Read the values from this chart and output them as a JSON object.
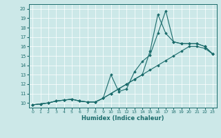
{
  "xlabel": "Humidex (Indice chaleur)",
  "xlim": [
    -0.5,
    23.5
  ],
  "ylim": [
    9.5,
    20.5
  ],
  "xticks": [
    0,
    1,
    2,
    3,
    4,
    5,
    6,
    7,
    8,
    9,
    10,
    11,
    12,
    13,
    14,
    15,
    16,
    17,
    18,
    19,
    20,
    21,
    22,
    23
  ],
  "yticks": [
    10,
    11,
    12,
    13,
    14,
    15,
    16,
    17,
    18,
    19,
    20
  ],
  "bg_color": "#cce8e8",
  "line_color": "#1a6b6b",
  "series": [
    [
      9.8,
      9.9,
      10.0,
      10.2,
      10.3,
      10.4,
      10.2,
      10.1,
      10.1,
      10.5,
      13.0,
      11.2,
      11.5,
      13.3,
      14.4,
      15.1,
      17.4,
      19.8,
      16.5,
      16.3,
      16.3,
      16.3,
      16.0,
      15.2
    ],
    [
      9.8,
      9.9,
      10.0,
      10.2,
      10.3,
      10.4,
      10.2,
      10.1,
      10.1,
      10.5,
      11.0,
      11.5,
      12.0,
      12.5,
      13.0,
      13.5,
      14.0,
      14.5,
      15.0,
      15.5,
      16.0,
      16.0,
      15.8,
      15.2
    ],
    [
      9.8,
      9.9,
      10.0,
      10.2,
      10.3,
      10.4,
      10.2,
      10.1,
      10.1,
      10.5,
      11.0,
      11.5,
      12.0,
      12.5,
      13.0,
      15.5,
      19.4,
      17.4,
      16.5,
      16.3,
      16.3,
      16.3,
      16.0,
      15.2
    ]
  ]
}
